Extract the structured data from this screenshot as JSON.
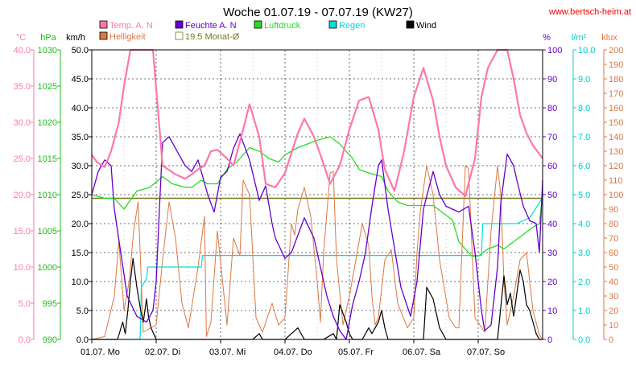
{
  "chart_data": {
    "type": "line",
    "title": "Woche 01.07.19 - 07.07.19 (KW27)",
    "credit": "www.bertsch-heim.at",
    "x_labels": [
      "01.07. Mo",
      "02.07. Di",
      "03.07. Mi",
      "04.07. Do",
      "05.07. Fr",
      "06.07. Sa",
      "07.07. So"
    ],
    "x_range_days": [
      0,
      7
    ],
    "axes": [
      {
        "unit": "°C",
        "side": "left",
        "color": "#ff77aa",
        "min": 0,
        "max": 40,
        "step": 5,
        "labels": [
          "0.0",
          "5.0",
          "10.0",
          "15.0",
          "20.0",
          "25.0",
          "30.0",
          "35.0",
          "40.0"
        ]
      },
      {
        "unit": "hPa",
        "side": "left",
        "color": "#22bb22",
        "min": 990,
        "max": 1030,
        "step": 5,
        "labels": [
          "990",
          "995",
          "1000",
          "1005",
          "1010",
          "1015",
          "1020",
          "1025",
          "1030"
        ]
      },
      {
        "unit": "km/h",
        "side": "left",
        "color": "#000000",
        "min": 0,
        "max": 50,
        "step": 5,
        "labels": [
          "0.0",
          "5.0",
          "10.0",
          "15.0",
          "20.0",
          "25.0",
          "30.0",
          "35.0",
          "40.0",
          "45.0",
          "50.0"
        ]
      },
      {
        "unit": "%",
        "side": "right",
        "color": "#6600cc",
        "min": 0,
        "max": 100,
        "step": 10,
        "labels": [
          "0",
          "10",
          "20",
          "30",
          "40",
          "50",
          "60",
          "70",
          "80",
          "90",
          "100"
        ]
      },
      {
        "unit": "l/m²",
        "side": "right",
        "color": "#00cccc",
        "min": 0,
        "max": 10,
        "step": 1,
        "labels": [
          "0.0",
          "1.0",
          "2.0",
          "3.0",
          "4.0",
          "5.0",
          "6.0",
          "7.0",
          "8.0",
          "9.0",
          "10.0"
        ]
      },
      {
        "unit": "klux",
        "side": "right",
        "color": "#dd7744",
        "min": 0,
        "max": 200,
        "step": 10,
        "labels": [
          "0",
          "10",
          "20",
          "30",
          "40",
          "50",
          "60",
          "70",
          "80",
          "90",
          "100",
          "110",
          "120",
          "130",
          "140",
          "150",
          "160",
          "170",
          "180",
          "190",
          "200"
        ]
      }
    ],
    "legend": [
      {
        "label": "Temp. A. N",
        "color": "#ff77aa"
      },
      {
        "label": "Feuchte A. N",
        "color": "#6600cc"
      },
      {
        "label": "Luftdruck",
        "color": "#22dd22"
      },
      {
        "label": "Regen",
        "color": "#00dddd"
      },
      {
        "label": "Wind",
        "color": "#000000"
      },
      {
        "label": "Helligkeit",
        "color": "#dd7744"
      },
      {
        "label": "19.5 Monat-Ø",
        "color": "#777722"
      }
    ],
    "series": [
      {
        "name": "Temp. A. N",
        "axis": 0,
        "color": "#ff77aa",
        "width": 2.2,
        "x": [
          0,
          0.08,
          0.2,
          0.3,
          0.42,
          0.5,
          0.6,
          0.7,
          0.8,
          0.95,
          1.1,
          1.3,
          1.45,
          1.55,
          1.65,
          1.75,
          1.85,
          1.95,
          2.1,
          2.2,
          2.35,
          2.45,
          2.6,
          2.7,
          2.85,
          3.0,
          3.2,
          3.3,
          3.45,
          3.55,
          3.7,
          3.85,
          4.0,
          4.15,
          4.3,
          4.45,
          4.55,
          4.7,
          4.85,
          5.0,
          5.15,
          5.3,
          5.4,
          5.5,
          5.65,
          5.8,
          5.95,
          6.05,
          6.15,
          6.3,
          6.45,
          6.55,
          6.65,
          6.75,
          6.85,
          7.0
        ],
        "y": [
          25.5,
          24.5,
          23.8,
          26,
          30,
          35,
          40,
          44.5,
          45.2,
          42,
          24,
          22.8,
          22.2,
          22.8,
          23.5,
          24,
          26,
          26.2,
          25,
          24,
          29,
          32.5,
          28,
          21.5,
          21,
          23,
          28.5,
          30.5,
          28,
          25.5,
          21.5,
          24,
          29,
          33,
          33.5,
          29,
          23.5,
          20.5,
          26,
          33.5,
          37.5,
          33,
          28,
          24,
          21,
          19.8,
          25,
          33.5,
          37.5,
          42,
          41.5,
          36,
          31,
          28.5,
          26.8,
          25
        ]
      },
      {
        "name": "Feuchte A. N",
        "axis": 3,
        "color": "#6600cc",
        "width": 1.3,
        "x": [
          0,
          0.1,
          0.2,
          0.3,
          0.35,
          0.45,
          0.55,
          0.7,
          0.85,
          0.95,
          1.0,
          1.05,
          1.1,
          1.2,
          1.3,
          1.45,
          1.55,
          1.65,
          1.8,
          1.9,
          2.0,
          2.1,
          2.2,
          2.3,
          2.45,
          2.6,
          2.7,
          2.8,
          2.85,
          3.0,
          3.1,
          3.2,
          3.3,
          3.45,
          3.55,
          3.65,
          3.75,
          3.85,
          3.95,
          4.05,
          4.15,
          4.25,
          4.35,
          4.45,
          4.5,
          4.6,
          4.8,
          4.95,
          5.05,
          5.15,
          5.3,
          5.4,
          5.5,
          5.6,
          5.7,
          5.85,
          5.95,
          6.05,
          6.1,
          6.2,
          6.3,
          6.35,
          6.45,
          6.55,
          6.6,
          6.7,
          6.8,
          6.9,
          6.95,
          7.0
        ],
        "y": [
          50,
          58,
          62,
          60,
          45,
          30,
          15,
          8,
          6,
          10,
          20,
          45,
          68,
          70,
          66,
          60,
          58,
          62,
          50,
          44,
          56,
          58,
          66,
          71,
          62,
          48,
          53,
          40,
          35,
          28,
          30,
          36,
          42,
          35,
          25,
          15,
          8,
          3,
          0,
          12,
          20,
          30,
          46,
          60,
          62,
          45,
          18,
          8,
          20,
          45,
          58,
          50,
          46,
          45,
          44,
          46,
          30,
          10,
          3,
          5,
          25,
          47,
          64,
          60,
          55,
          46,
          41,
          40,
          30,
          55
        ]
      },
      {
        "name": "Luftdruck",
        "axis": 1,
        "color": "#22dd22",
        "width": 1.3,
        "x": [
          0,
          0.2,
          0.35,
          0.5,
          0.7,
          0.9,
          1.1,
          1.25,
          1.45,
          1.55,
          1.7,
          1.8,
          1.95,
          2.1,
          2.25,
          2.45,
          2.6,
          2.75,
          2.9,
          3.0,
          3.2,
          3.35,
          3.5,
          3.7,
          3.85,
          4.05,
          4.15,
          4.3,
          4.5,
          4.6,
          4.75,
          4.9,
          5.1,
          5.3,
          5.45,
          5.6,
          5.7,
          5.85,
          5.9,
          6.0,
          6.15,
          6.3,
          6.4,
          6.55,
          6.7,
          6.85,
          6.95,
          7.0
        ],
        "y": [
          1010,
          1009.5,
          1009.5,
          1008,
          1010.5,
          1011,
          1012.5,
          1011.5,
          1011,
          1011,
          1012,
          1011.5,
          1011.5,
          1013.5,
          1014.5,
          1016.5,
          1016,
          1015,
          1014.5,
          1015.5,
          1016.5,
          1017,
          1017.5,
          1018,
          1017,
          1015,
          1013.5,
          1013,
          1012.5,
          1010.5,
          1009,
          1008.5,
          1008.5,
          1008.5,
          1007.5,
          1006.5,
          1003.5,
          1002,
          1001.5,
          1001.5,
          1002.5,
          1003,
          1002.5,
          1003.5,
          1004.5,
          1005.5,
          1006,
          1010
        ]
      },
      {
        "name": "Regen",
        "axis": 4,
        "color": "#00dddd",
        "width": 1.2,
        "x": [
          0,
          0.75,
          0.77,
          0.85,
          0.87,
          0.95,
          1.7,
          1.72,
          4.6,
          5.95,
          6.05,
          6.07,
          6.6,
          6.8,
          7.0
        ],
        "y": [
          0,
          0,
          1.8,
          2.1,
          2.5,
          2.5,
          2.5,
          2.9,
          2.9,
          2.9,
          2.9,
          4.0,
          4.0,
          4.2,
          4.9
        ]
      },
      {
        "name": "Wind",
        "axis": 2,
        "color": "#000000",
        "width": 1.2,
        "x": [
          0,
          0.4,
          0.48,
          0.52,
          0.56,
          0.6,
          0.64,
          0.7,
          0.76,
          0.8,
          0.85,
          0.88,
          0.92,
          0.96,
          1.0,
          1.1,
          2.5,
          2.6,
          2.65,
          2.7,
          3.0,
          3.1,
          3.2,
          3.3,
          3.45,
          3.6,
          3.75,
          3.8,
          3.85,
          3.95,
          4.0,
          4.05,
          4.2,
          4.3,
          4.35,
          4.45,
          4.5,
          4.55,
          4.6,
          4.7,
          5.0,
          5.15,
          5.2,
          5.3,
          5.4,
          5.5,
          5.6,
          5.7,
          6.0,
          6.3,
          6.4,
          6.45,
          6.5,
          6.55,
          6.65,
          6.7,
          6.75,
          6.8,
          6.85,
          6.9,
          6.95,
          7.0
        ],
        "y": [
          0,
          0,
          3,
          1,
          5,
          10,
          14,
          9,
          5,
          3,
          7,
          4,
          2,
          1,
          0,
          0,
          0,
          1,
          0,
          0,
          0,
          1,
          2,
          0,
          0,
          0,
          1,
          0,
          6,
          3,
          1,
          0,
          0,
          2,
          1,
          3,
          5,
          2,
          0,
          0,
          0,
          0,
          9,
          7,
          2,
          0,
          0,
          0,
          0,
          0,
          11,
          6,
          8,
          4,
          12,
          10,
          6,
          5,
          3,
          1,
          0,
          0
        ]
      },
      {
        "name": "Helligkeit",
        "axis": 5,
        "color": "#dd7744",
        "width": 1.0,
        "x": [
          0,
          0.2,
          0.35,
          0.42,
          0.5,
          0.58,
          0.65,
          0.72,
          0.8,
          1.0,
          1.1,
          1.2,
          1.3,
          1.4,
          1.5,
          1.65,
          1.75,
          1.78,
          1.85,
          1.95,
          2.1,
          2.2,
          2.3,
          2.35,
          2.45,
          2.55,
          2.65,
          2.8,
          2.9,
          3.0,
          3.1,
          3.15,
          3.2,
          3.3,
          3.4,
          3.5,
          3.55,
          3.6,
          3.7,
          3.75,
          3.8,
          3.9,
          4.0,
          4.2,
          4.3,
          4.35,
          4.4,
          4.45,
          4.55,
          4.65,
          4.75,
          4.9,
          5.0,
          5.05,
          5.1,
          5.2,
          5.3,
          5.4,
          5.55,
          5.65,
          5.7,
          5.8,
          5.85,
          5.95,
          6.1,
          6.2,
          6.3,
          6.35,
          6.4,
          6.45,
          6.55,
          6.65,
          6.75,
          6.85,
          6.95,
          7.0
        ],
        "y": [
          0,
          2,
          30,
          68,
          20,
          40,
          75,
          95,
          5,
          10,
          55,
          95,
          70,
          25,
          8,
          50,
          85,
          2,
          12,
          75,
          10,
          70,
          58,
          110,
          100,
          15,
          5,
          25,
          10,
          15,
          80,
          72,
          90,
          105,
          85,
          40,
          12,
          60,
          115,
          116,
          55,
          10,
          30,
          80,
          65,
          30,
          10,
          15,
          55,
          62,
          25,
          8,
          15,
          60,
          88,
          120,
          100,
          55,
          15,
          8,
          8,
          120,
          118,
          15,
          5,
          75,
          120,
          100,
          40,
          10,
          30,
          55,
          60,
          20,
          3,
          0
        ]
      }
    ],
    "reference_line": {
      "name": "19.5 Monat-Ø",
      "axis": 0,
      "value": 19.5,
      "color": "#777722"
    }
  }
}
